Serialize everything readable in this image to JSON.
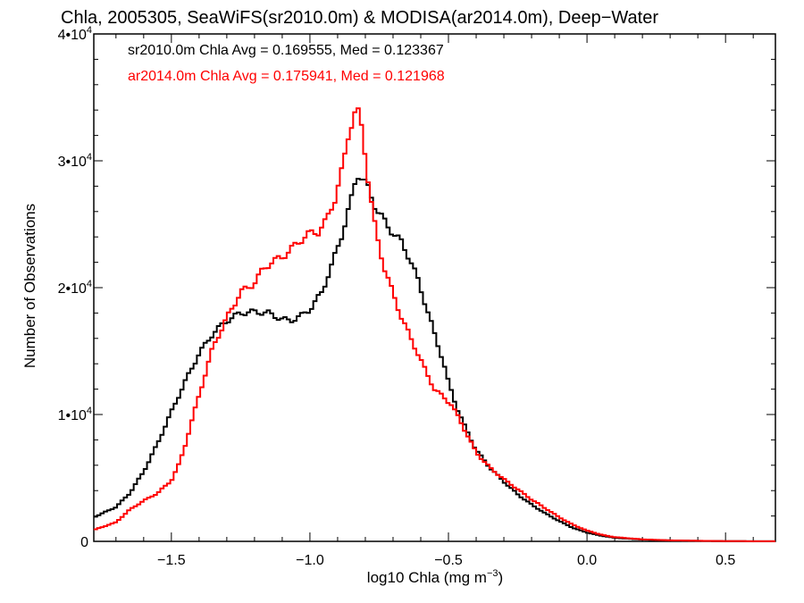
{
  "chart_data": {
    "type": "line",
    "title": "Chla, 2005305, SeaWiFS(sr2010.0m) & MODISA(ar2014.0m), Deep−Water",
    "xlabel": "log10 Chla (mg m",
    "xlabel_sup": "−3",
    "xlabel_end": ")",
    "ylabel": "Number of Observations",
    "xlim": [
      -1.78,
      0.68
    ],
    "ylim": [
      0,
      40000
    ],
    "x_ticks": [
      {
        "value": -1.5,
        "label": "−1.5"
      },
      {
        "value": -1.0,
        "label": "−1.0"
      },
      {
        "value": -0.5,
        "label": "−0.5"
      },
      {
        "value": 0.0,
        "label": "0.0"
      },
      {
        "value": 0.5,
        "label": "0.5"
      }
    ],
    "y_ticks": [
      {
        "value": 0,
        "mant": "0",
        "exp": ""
      },
      {
        "value": 10000,
        "mant": "1•10",
        "exp": "4"
      },
      {
        "value": 20000,
        "mant": "2•10",
        "exp": "4"
      },
      {
        "value": 30000,
        "mant": "3•10",
        "exp": "4"
      },
      {
        "value": 40000,
        "mant": "4•10",
        "exp": "4"
      }
    ],
    "annotations": [
      {
        "text": "sr2010.0m Chla Avg = 0.169555, Med = 0.123367",
        "color": "#000000"
      },
      {
        "text": "ar2014.0m Chla Avg = 0.175941, Med = 0.121968",
        "color": "#ff0000"
      }
    ],
    "series": [
      {
        "color": "#000000",
        "points": [
          [
            -1.78,
            1900
          ],
          [
            -1.7,
            2700
          ],
          [
            -1.65,
            3800
          ],
          [
            -1.6,
            5500
          ],
          [
            -1.55,
            7700
          ],
          [
            -1.5,
            10200
          ],
          [
            -1.45,
            12600
          ],
          [
            -1.4,
            14800
          ],
          [
            -1.35,
            16400
          ],
          [
            -1.3,
            17400
          ],
          [
            -1.25,
            18000
          ],
          [
            -1.2,
            18100
          ],
          [
            -1.15,
            18000
          ],
          [
            -1.1,
            17500
          ],
          [
            -1.07,
            17400
          ],
          [
            -1.03,
            17800
          ],
          [
            -1.0,
            18300
          ],
          [
            -0.96,
            19500
          ],
          [
            -0.92,
            21800
          ],
          [
            -0.88,
            24500
          ],
          [
            -0.85,
            27000
          ],
          [
            -0.83,
            29000
          ],
          [
            -0.81,
            28600
          ],
          [
            -0.79,
            27800
          ],
          [
            -0.76,
            26200
          ],
          [
            -0.73,
            25200
          ],
          [
            -0.7,
            24300
          ],
          [
            -0.67,
            23600
          ],
          [
            -0.64,
            22300
          ],
          [
            -0.61,
            20600
          ],
          [
            -0.58,
            18500
          ],
          [
            -0.55,
            16300
          ],
          [
            -0.52,
            14300
          ],
          [
            -0.5,
            12500
          ],
          [
            -0.47,
            10600
          ],
          [
            -0.44,
            9000
          ],
          [
            -0.4,
            7200
          ],
          [
            -0.35,
            5800
          ],
          [
            -0.3,
            4700
          ],
          [
            -0.25,
            3700
          ],
          [
            -0.2,
            2900
          ],
          [
            -0.15,
            2200
          ],
          [
            -0.1,
            1600
          ],
          [
            -0.05,
            1050
          ],
          [
            0.0,
            700
          ],
          [
            0.05,
            450
          ],
          [
            0.1,
            280
          ],
          [
            0.2,
            140
          ],
          [
            0.3,
            70
          ],
          [
            0.4,
            40
          ],
          [
            0.5,
            20
          ],
          [
            0.6,
            10
          ],
          [
            0.68,
            5
          ]
        ]
      },
      {
        "color": "#ff0000",
        "points": [
          [
            -1.78,
            900
          ],
          [
            -1.7,
            1500
          ],
          [
            -1.65,
            2500
          ],
          [
            -1.6,
            3200
          ],
          [
            -1.55,
            3800
          ],
          [
            -1.5,
            4800
          ],
          [
            -1.47,
            6200
          ],
          [
            -1.45,
            7600
          ],
          [
            -1.43,
            9200
          ],
          [
            -1.4,
            11500
          ],
          [
            -1.37,
            13800
          ],
          [
            -1.35,
            15300
          ],
          [
            -1.3,
            17600
          ],
          [
            -1.27,
            18800
          ],
          [
            -1.25,
            19700
          ],
          [
            -1.22,
            20000
          ],
          [
            -1.2,
            20400
          ],
          [
            -1.17,
            21400
          ],
          [
            -1.14,
            22000
          ],
          [
            -1.1,
            22400
          ],
          [
            -1.06,
            23200
          ],
          [
            -1.03,
            23800
          ],
          [
            -1.0,
            24300
          ],
          [
            -0.97,
            24400
          ],
          [
            -0.94,
            25300
          ],
          [
            -0.91,
            27000
          ],
          [
            -0.88,
            29600
          ],
          [
            -0.86,
            32200
          ],
          [
            -0.84,
            33700
          ],
          [
            -0.83,
            34100
          ],
          [
            -0.81,
            32300
          ],
          [
            -0.79,
            28600
          ],
          [
            -0.77,
            25400
          ],
          [
            -0.75,
            23200
          ],
          [
            -0.73,
            21500
          ],
          [
            -0.7,
            19500
          ],
          [
            -0.67,
            17700
          ],
          [
            -0.64,
            16200
          ],
          [
            -0.61,
            14800
          ],
          [
            -0.58,
            13300
          ],
          [
            -0.55,
            12000
          ],
          [
            -0.52,
            11400
          ],
          [
            -0.49,
            10800
          ],
          [
            -0.46,
            9600
          ],
          [
            -0.43,
            8300
          ],
          [
            -0.4,
            7000
          ],
          [
            -0.35,
            5800
          ],
          [
            -0.3,
            4900
          ],
          [
            -0.25,
            4100
          ],
          [
            -0.2,
            3300
          ],
          [
            -0.15,
            2600
          ],
          [
            -0.1,
            1900
          ],
          [
            -0.05,
            1300
          ],
          [
            0.0,
            850
          ],
          [
            0.05,
            530
          ],
          [
            0.1,
            330
          ],
          [
            0.2,
            160
          ],
          [
            0.3,
            80
          ],
          [
            0.4,
            45
          ],
          [
            0.5,
            20
          ],
          [
            0.6,
            10
          ],
          [
            0.68,
            5
          ]
        ]
      }
    ]
  }
}
